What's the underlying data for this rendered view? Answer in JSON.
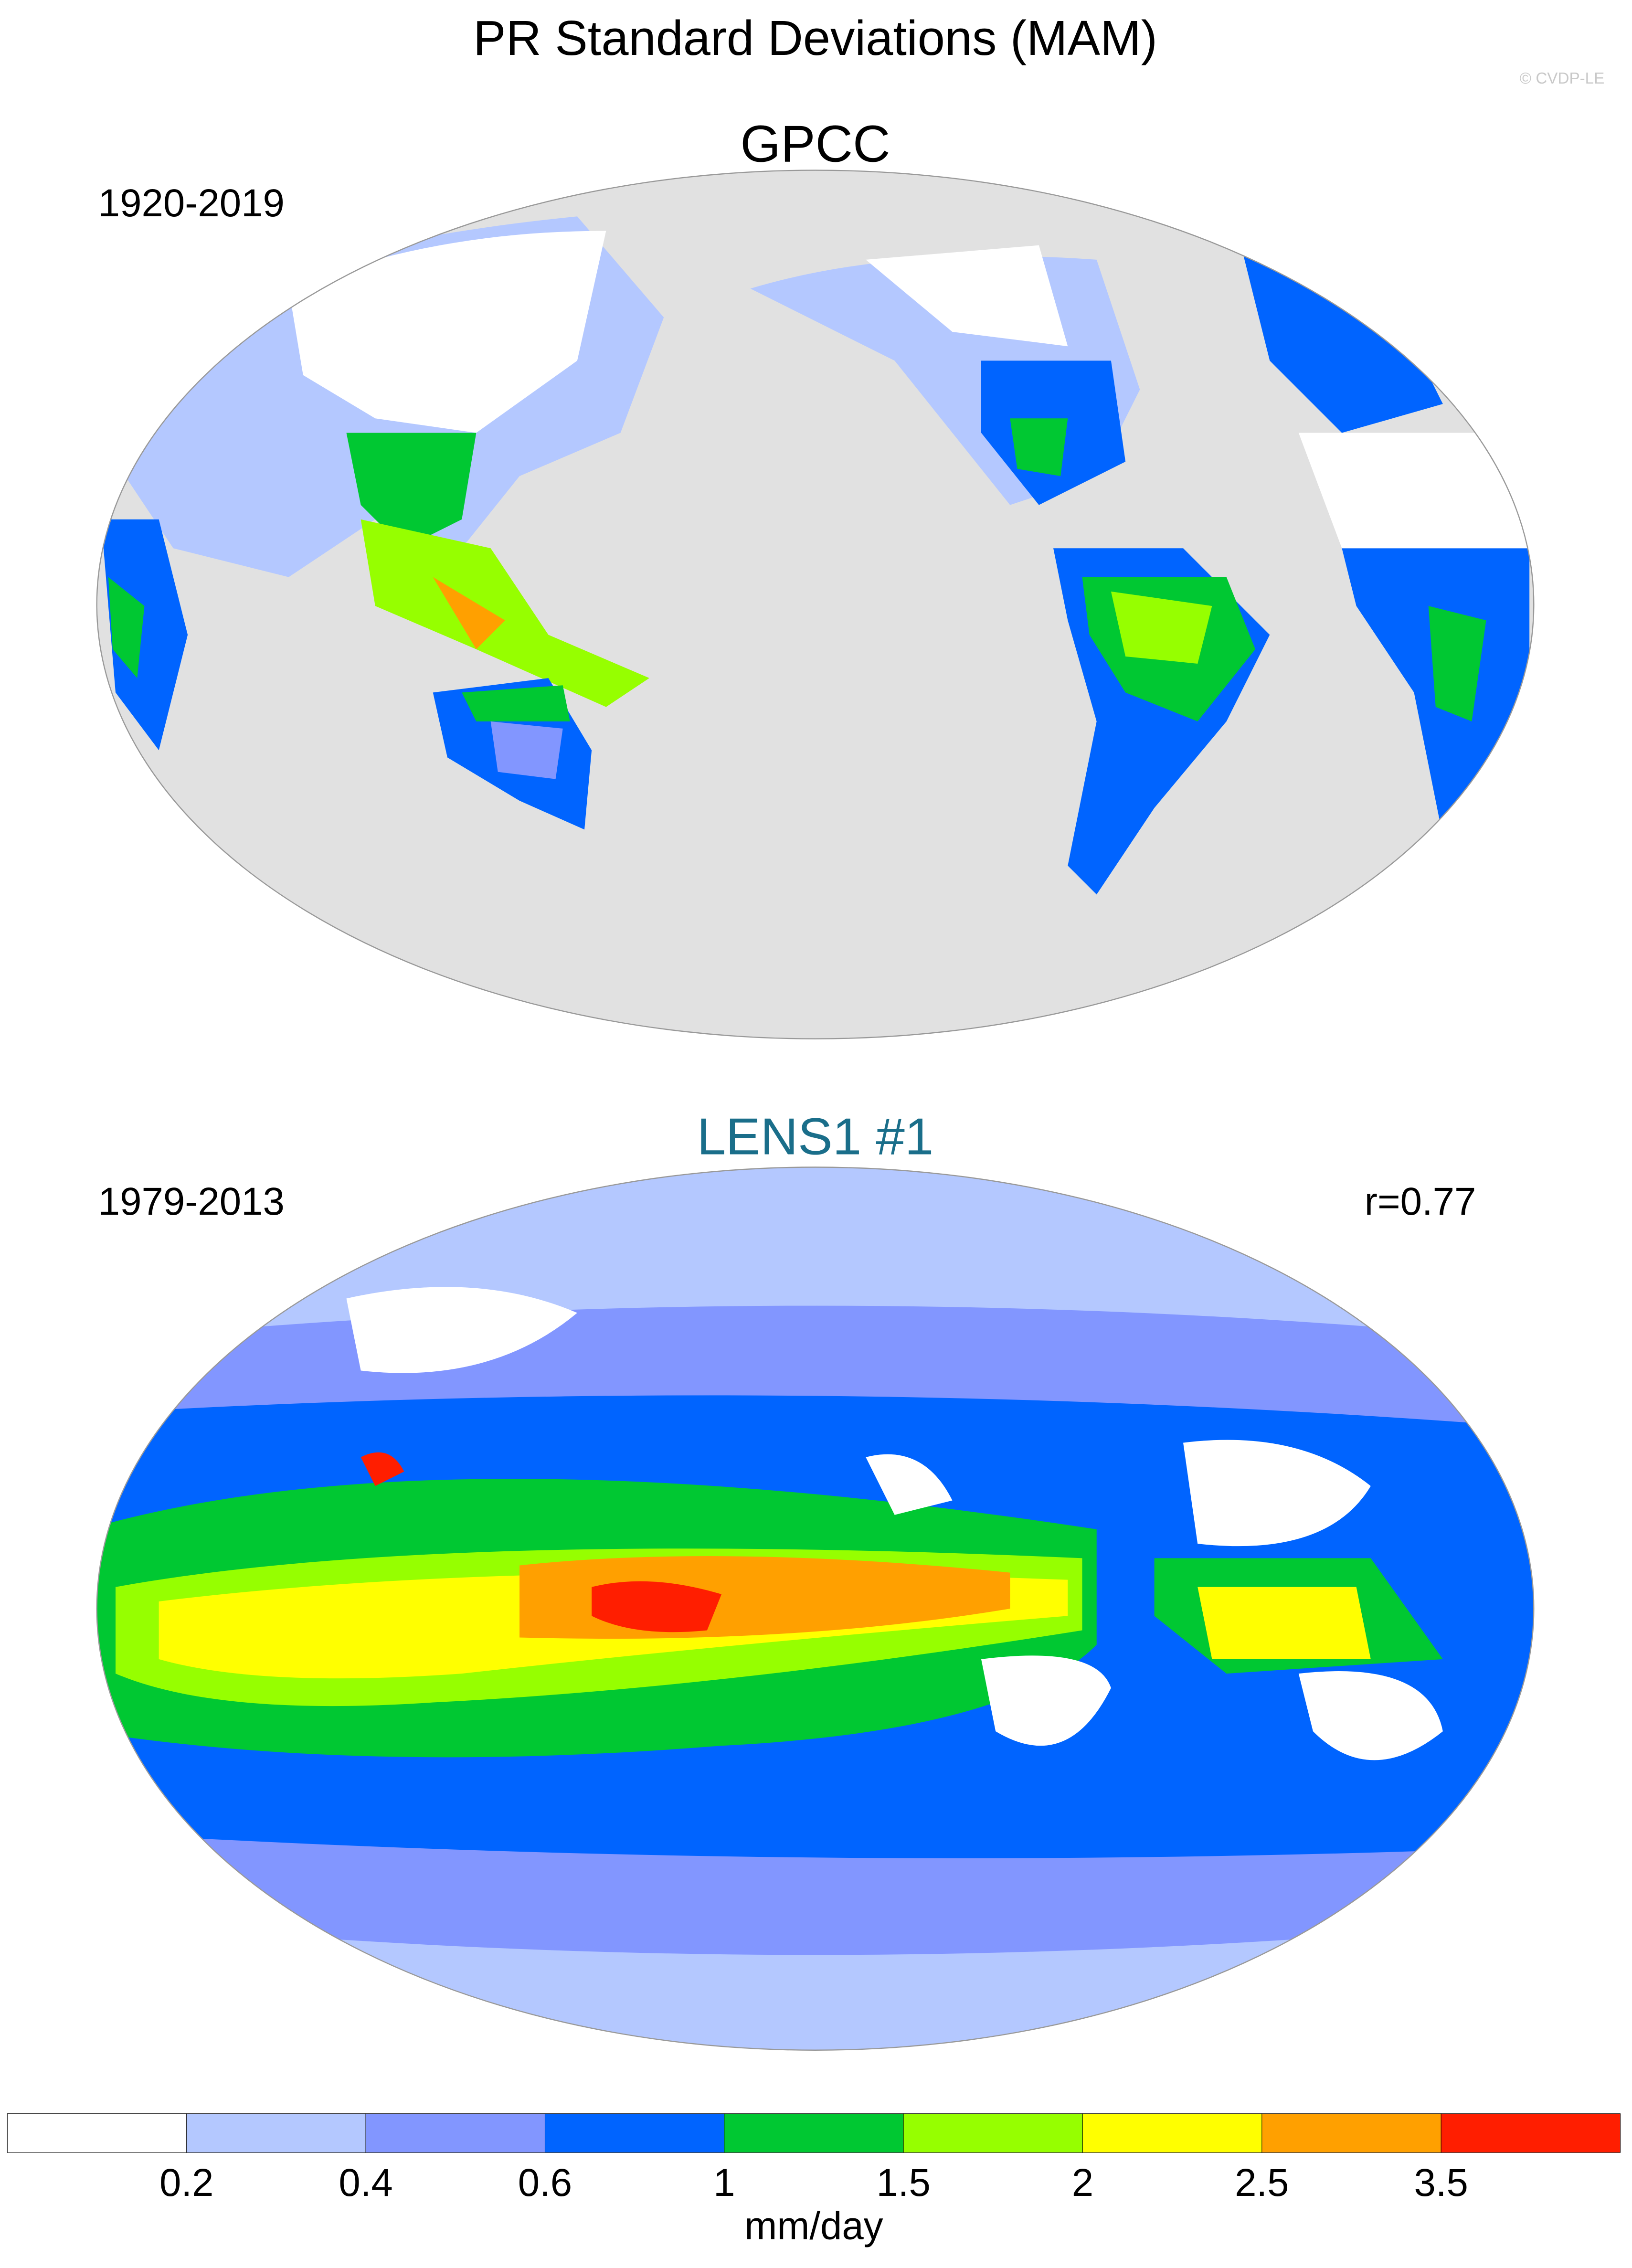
{
  "title": "PR Standard Deviations (MAM)",
  "watermark": "© CVDP-LE",
  "panels": [
    {
      "title": "GPCC",
      "period": "1920-2019"
    },
    {
      "title": "LENS1 #1",
      "period": "1979-2013",
      "r": "r=0.77"
    }
  ],
  "colorbar": {
    "levels": [
      0.2,
      0.4,
      0.6,
      1,
      1.5,
      2,
      2.5,
      3.5
    ],
    "colors": [
      "#ffffff",
      "#b4c8ff",
      "#8296ff",
      "#0064ff",
      "#00c832",
      "#96ff00",
      "#ffff00",
      "#ffa000",
      "#ff1e00"
    ],
    "unit": "mm/day"
  }
}
